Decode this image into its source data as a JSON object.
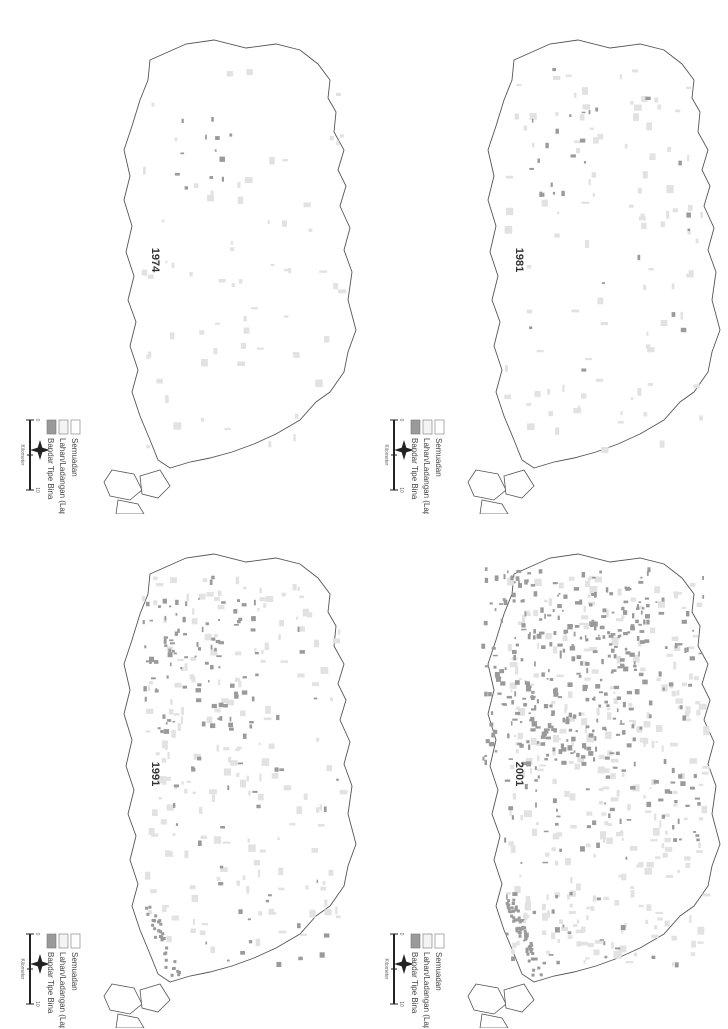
{
  "maps": [
    {
      "year": "1974",
      "density": 0.1
    },
    {
      "year": "1981",
      "density": 0.22
    },
    {
      "year": "1991",
      "density": 0.55
    },
    {
      "year": "2001",
      "density": 1.0
    }
  ],
  "legend": {
    "items": [
      {
        "label": "Semuadan",
        "color": "#ffffff"
      },
      {
        "label": "Lahan/Ladangan (Lapang)",
        "color": "#f4f4f4"
      },
      {
        "label": "Bandar Tipe Bina",
        "color": "#9a9a9a"
      }
    ],
    "scale_start": "0",
    "scale_end": "10",
    "scale_unit": "Kilometer"
  },
  "colors": {
    "outline": "#555555",
    "builtup": "#9a9a9a",
    "lightpatch": "#e2e2e2"
  }
}
